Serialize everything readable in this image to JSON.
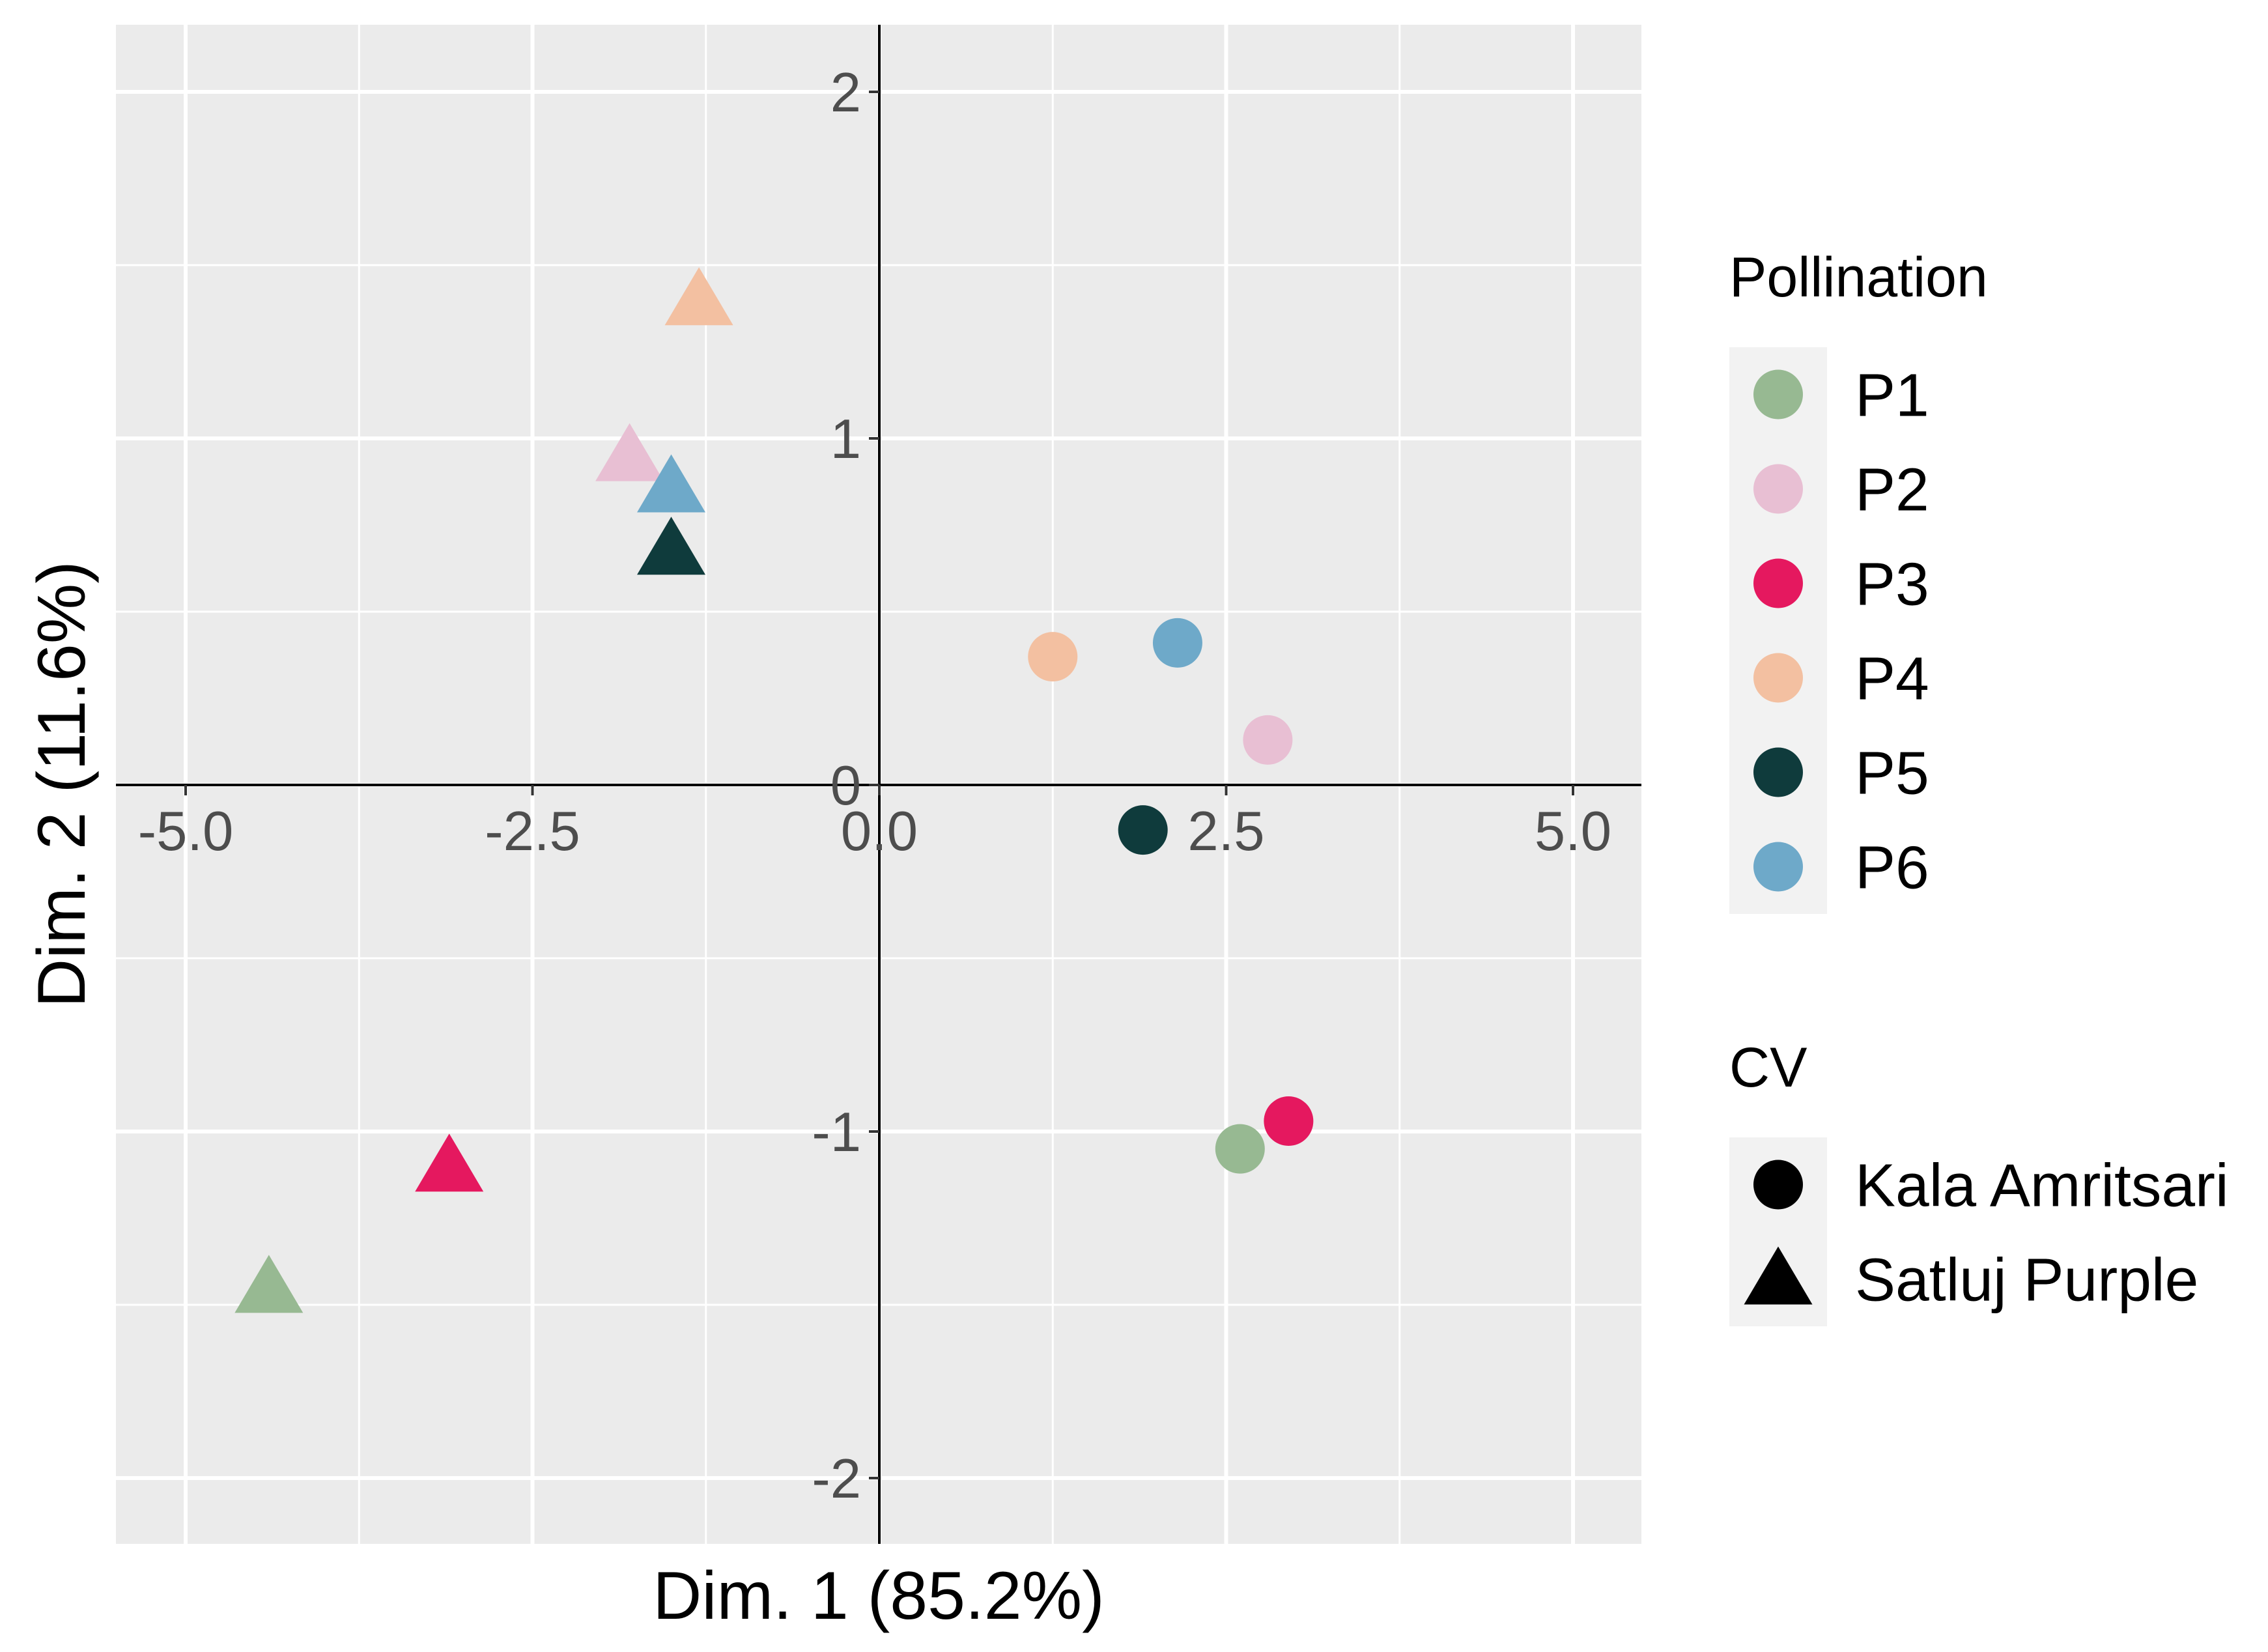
{
  "chart_data": {
    "type": "scatter",
    "xlabel": "Dim. 1 (85.2%)",
    "ylabel": "Dim. 2 (11.6%)",
    "xlim": [
      -5.5,
      5.5
    ],
    "ylim": [
      -2.2,
      2.2
    ],
    "x_ticks": [
      {
        "value": -5.0,
        "label": "-5.0"
      },
      {
        "value": -2.5,
        "label": "-2.5"
      },
      {
        "value": 0.0,
        "label": "0.0"
      },
      {
        "value": 2.5,
        "label": "2.5"
      },
      {
        "value": 5.0,
        "label": "5.0"
      }
    ],
    "y_ticks": [
      {
        "value": 2,
        "label": "2"
      },
      {
        "value": 1,
        "label": "1"
      },
      {
        "value": 0,
        "label": "0"
      },
      {
        "value": -1,
        "label": "-1"
      },
      {
        "value": -2,
        "label": "-2"
      }
    ],
    "grid": true,
    "legend_position": "right",
    "legends": [
      {
        "title": "Pollination",
        "key": "color",
        "entries": [
          {
            "label": "P1",
            "color": "#97b992"
          },
          {
            "label": "P2",
            "color": "#e8bfd3"
          },
          {
            "label": "P3",
            "color": "#e5185f"
          },
          {
            "label": "P4",
            "color": "#f3c0a1"
          },
          {
            "label": "P5",
            "color": "#0f3b3c"
          },
          {
            "label": "P6",
            "color": "#6ea9c9"
          }
        ]
      },
      {
        "title": "CV",
        "key": "shape",
        "entries": [
          {
            "label": "Kala Amritsari",
            "shape": "circle"
          },
          {
            "label": "Satluj Purple",
            "shape": "triangle"
          }
        ]
      }
    ],
    "series": [
      {
        "name": "Kala Amritsari",
        "shape": "circle",
        "points": [
          {
            "pollination": "P1",
            "x": 2.6,
            "y": -1.05
          },
          {
            "pollination": "P2",
            "x": 2.8,
            "y": 0.13
          },
          {
            "pollination": "P3",
            "x": 2.95,
            "y": -0.97
          },
          {
            "pollination": "P4",
            "x": 1.25,
            "y": 0.37
          },
          {
            "pollination": "P5",
            "x": 1.9,
            "y": -0.13
          },
          {
            "pollination": "P6",
            "x": 2.15,
            "y": 0.41
          }
        ]
      },
      {
        "name": "Satluj Purple",
        "shape": "triangle",
        "points": [
          {
            "pollination": "P1",
            "x": -4.4,
            "y": -1.45
          },
          {
            "pollination": "P2",
            "x": -1.8,
            "y": 0.95
          },
          {
            "pollination": "P3",
            "x": -3.1,
            "y": -1.1
          },
          {
            "pollination": "P4",
            "x": -1.3,
            "y": 1.4
          },
          {
            "pollination": "P5",
            "x": -1.5,
            "y": 0.68
          },
          {
            "pollination": "P6",
            "x": -1.5,
            "y": 0.86
          }
        ]
      }
    ]
  }
}
